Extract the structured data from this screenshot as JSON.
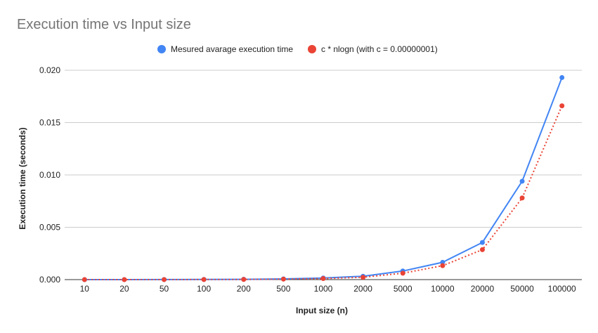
{
  "chart_data": {
    "type": "line",
    "title": "Execution time vs Input size",
    "xlabel": "Input size (n)",
    "ylabel": "Execution time (seconds)",
    "categories": [
      "10",
      "20",
      "50",
      "100",
      "200",
      "500",
      "1000",
      "2000",
      "5000",
      "10000",
      "20000",
      "50000",
      "100000"
    ],
    "ylim": [
      0,
      0.02
    ],
    "yticks": [
      "0.000",
      "0.005",
      "0.010",
      "0.015",
      "0.020"
    ],
    "ytick_values": [
      0,
      0.005,
      0.01,
      0.015,
      0.02
    ],
    "grid": true,
    "legend_position": "top",
    "series": [
      {
        "name": "Mesured avarage execution time",
        "color": "#4285f4",
        "style": "solid",
        "values": [
          2e-06,
          3e-06,
          8e-06,
          1.6e-05,
          3e-05,
          7e-05,
          0.00015,
          0.00032,
          0.00082,
          0.00165,
          0.00355,
          0.0094,
          0.0193
        ]
      },
      {
        "name": "c * nlogn (with c = 0.00000001)",
        "color": "#ea4335",
        "style": "dotted",
        "values": [
          3e-07,
          9e-07,
          2.8e-06,
          6.6e-06,
          1.53e-05,
          4.5e-05,
          0.0001,
          0.00022,
          0.00061,
          0.00133,
          0.00286,
          0.0078,
          0.0166
        ]
      }
    ]
  }
}
